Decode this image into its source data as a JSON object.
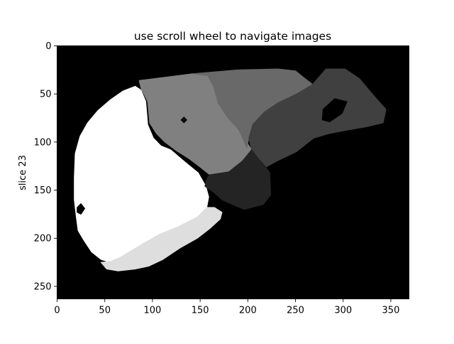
{
  "window": {
    "title": "use scroll wheel to navigate images"
  },
  "colors": {
    "background": "#000000",
    "segment_white": "#ffffff",
    "segment_light": "#e0e0e0",
    "segment_gray": "#808080",
    "segment_midgray": "#6a6a6a",
    "segment_darkgray": "#3f3f3f",
    "segment_darkest": "#222222"
  },
  "chart_data": {
    "type": "heatmap",
    "title": "use scroll wheel to navigate images",
    "xlabel": "",
    "ylabel": "slice 23",
    "xlim": [
      0,
      369
    ],
    "ylim": [
      263,
      0
    ],
    "x_ticks": [
      0,
      50,
      100,
      150,
      200,
      250,
      300,
      350
    ],
    "y_ticks": [
      0,
      50,
      100,
      150,
      200,
      250
    ],
    "grid": false,
    "regions": [
      {
        "shade": 1.0,
        "points": [
          [
            82,
            42
          ],
          [
            88,
            46
          ],
          [
            93,
            58
          ],
          [
            95,
            82
          ],
          [
            101,
            96
          ],
          [
            109,
            104
          ],
          [
            119,
            108
          ],
          [
            126,
            114
          ],
          [
            138,
            124
          ],
          [
            148,
            132
          ],
          [
            156,
            146
          ],
          [
            159,
            157
          ],
          [
            157,
            168
          ],
          [
            147,
            178
          ],
          [
            127,
            188
          ],
          [
            107,
            196
          ],
          [
            86,
            208
          ],
          [
            66,
            221
          ],
          [
            56,
            225
          ],
          [
            46,
            222
          ],
          [
            36,
            214
          ],
          [
            28,
            202
          ],
          [
            22,
            192
          ],
          [
            20,
            177
          ],
          [
            18,
            160
          ],
          [
            18,
            137
          ],
          [
            19,
            112
          ],
          [
            24,
            94
          ],
          [
            32,
            80
          ],
          [
            43,
            67
          ],
          [
            56,
            56
          ],
          [
            69,
            47
          ]
        ]
      },
      {
        "shade": 0.87,
        "points": [
          [
            157,
            168
          ],
          [
            165,
            168
          ],
          [
            173,
            173
          ],
          [
            171,
            180
          ],
          [
            160,
            190
          ],
          [
            147,
            200
          ],
          [
            129,
            210
          ],
          [
            111,
            222
          ],
          [
            96,
            229
          ],
          [
            82,
            232
          ],
          [
            64,
            234
          ],
          [
            52,
            232
          ],
          [
            46,
            225
          ],
          [
            56,
            224
          ],
          [
            66,
            220
          ],
          [
            86,
            208
          ],
          [
            107,
            196
          ],
          [
            127,
            188
          ],
          [
            147,
            178
          ]
        ]
      },
      {
        "shade": 0.5,
        "points": [
          [
            86,
            36
          ],
          [
            142,
            29
          ],
          [
            158,
            31
          ],
          [
            164,
            42
          ],
          [
            169,
            60
          ],
          [
            180,
            76
          ],
          [
            189,
            86
          ],
          [
            196,
            96
          ],
          [
            204,
            108
          ],
          [
            194,
            120
          ],
          [
            180,
            131
          ],
          [
            160,
            134
          ],
          [
            150,
            126
          ],
          [
            138,
            117
          ],
          [
            125,
            109
          ],
          [
            113,
            100
          ],
          [
            104,
            91
          ],
          [
            97,
            80
          ],
          [
            95,
            58
          ],
          [
            88,
            44
          ]
        ]
      },
      {
        "shade": 0.41,
        "points": [
          [
            142,
            29
          ],
          [
            190,
            25
          ],
          [
            232,
            24
          ],
          [
            250,
            26
          ],
          [
            260,
            34
          ],
          [
            268,
            40
          ],
          [
            253,
            49
          ],
          [
            243,
            54
          ],
          [
            232,
            59
          ],
          [
            217,
            69
          ],
          [
            205,
            82
          ],
          [
            201,
            96
          ],
          [
            199,
            106
          ],
          [
            190,
            86
          ],
          [
            180,
            76
          ],
          [
            169,
            60
          ],
          [
            164,
            42
          ],
          [
            158,
            31
          ]
        ]
      },
      {
        "shade": 0.25,
        "points": [
          [
            268,
            40
          ],
          [
            282,
            24
          ],
          [
            302,
            24
          ],
          [
            317,
            34
          ],
          [
            334,
            54
          ],
          [
            345,
            66
          ],
          [
            342,
            80
          ],
          [
            325,
            84
          ],
          [
            302,
            88
          ],
          [
            286,
            91
          ],
          [
            269,
            96
          ],
          [
            251,
            110
          ],
          [
            230,
            120
          ],
          [
            219,
            126
          ],
          [
            211,
            117
          ],
          [
            204,
            108
          ],
          [
            201,
            96
          ],
          [
            205,
            82
          ],
          [
            217,
            69
          ],
          [
            232,
            59
          ],
          [
            243,
            54
          ],
          [
            253,
            49
          ]
        ]
      },
      {
        "shade": 0.14,
        "points": [
          [
            160,
            134
          ],
          [
            180,
            131
          ],
          [
            194,
            120
          ],
          [
            204,
            108
          ],
          [
            211,
            117
          ],
          [
            219,
            126
          ],
          [
            223,
            132
          ],
          [
            224,
            155
          ],
          [
            216,
            165
          ],
          [
            196,
            170
          ],
          [
            184,
            165
          ],
          [
            173,
            160
          ],
          [
            164,
            152
          ],
          [
            155,
            146
          ],
          [
            157,
            138
          ]
        ]
      },
      {
        "shade": 0.0,
        "points": [
          [
            279,
            66
          ],
          [
            291,
            55
          ],
          [
            304,
            58
          ],
          [
            299,
            70
          ],
          [
            286,
            79
          ],
          [
            278,
            77
          ]
        ]
      },
      {
        "shade": 0.0,
        "points": [
          [
            130,
            77
          ],
          [
            133,
            74
          ],
          [
            136,
            77
          ],
          [
            133,
            80
          ]
        ]
      },
      {
        "shade": 0.0,
        "points": [
          [
            21,
            168
          ],
          [
            25,
            164
          ],
          [
            29,
            169
          ],
          [
            25,
            175
          ],
          [
            21,
            173
          ]
        ]
      }
    ]
  }
}
